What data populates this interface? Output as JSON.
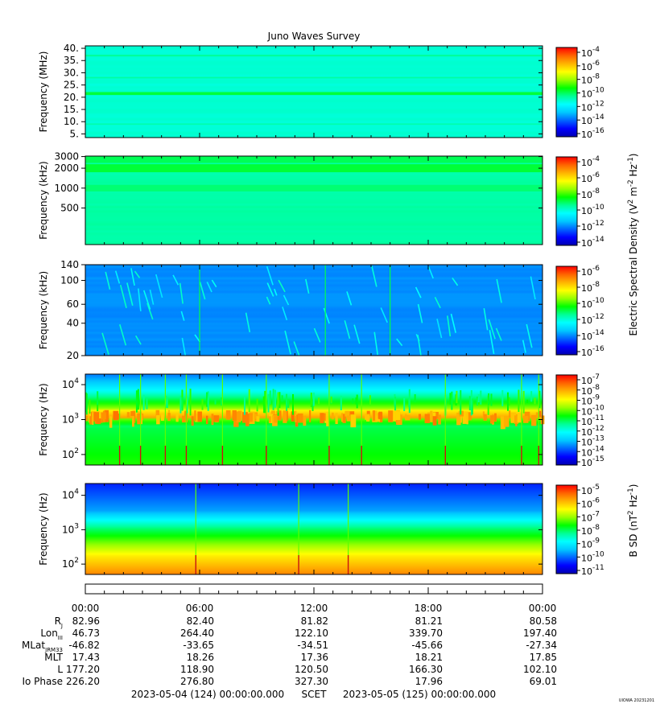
{
  "title": "Juno Waves Survey",
  "colors": {
    "colormap": [
      "#0000b0",
      "#0000ff",
      "#0064ff",
      "#00c8ff",
      "#00ffff",
      "#00ff96",
      "#00ff00",
      "#96ff00",
      "#ffff00",
      "#ffb400",
      "#ff6400",
      "#ff0000"
    ]
  },
  "chart_data": [
    {
      "type": "heatmap",
      "name": "panel-hfwbr",
      "ylabel": "Frequency (MHz)",
      "yscale": "linear",
      "ylim": [
        3.5,
        41
      ],
      "yticks": [
        "40.",
        "35.",
        "30.",
        "25.",
        "20.",
        "15.",
        "10.",
        "5."
      ],
      "ytick_values": [
        40,
        35,
        30,
        25,
        20,
        15,
        10,
        5
      ],
      "base_level": 0.4,
      "bands": [
        {
          "y": 21.5,
          "width": 1.2,
          "level": 0.52
        },
        {
          "y": 28.0,
          "width": 0.6,
          "level": 0.45
        },
        {
          "y": 37.0,
          "width": 0.6,
          "level": 0.46
        },
        {
          "y": 9.0,
          "width": 0.6,
          "level": 0.44
        }
      ],
      "colorbar": {
        "labels": [
          "10",
          "10",
          "10",
          "10",
          "10",
          "10",
          "10"
        ],
        "exponents": [
          "-4",
          "-6",
          "-8",
          "-10",
          "-12",
          "-14",
          "-16"
        ]
      }
    },
    {
      "type": "heatmap",
      "name": "panel-hfr",
      "ylabel": "Frequency (kHz)",
      "yscale": "log",
      "ylim": [
        140,
        3050
      ],
      "yticks": [
        "3000",
        "2000",
        "1000",
        "500"
      ],
      "ytick_values": [
        3000,
        2000,
        1000,
        500
      ],
      "base_level": 0.44,
      "bands": [
        {
          "y": 2000,
          "width": 0.06,
          "level": 0.52
        },
        {
          "y": 2700,
          "width": 0.05,
          "level": 0.5
        },
        {
          "y": 1000,
          "width": 0.05,
          "level": 0.48
        }
      ],
      "colorbar": {
        "labels": [
          "10",
          "10",
          "10",
          "10",
          "10",
          "10"
        ],
        "exponents": [
          "-4",
          "-6",
          "-8",
          "-10",
          "-12",
          "-14"
        ]
      }
    },
    {
      "type": "heatmap",
      "name": "panel-lfr-high",
      "ylabel": "Frequency (kHz)",
      "yscale": "log",
      "ylim": [
        20,
        140
      ],
      "yticks": [
        "140",
        "100",
        "60",
        "40",
        "20"
      ],
      "ytick_values": [
        140,
        100,
        60,
        40,
        20
      ],
      "base_level": 0.22,
      "spikes_hours": [
        6.0,
        12.6,
        16.0
      ],
      "colorbar": {
        "labels": [
          "10",
          "10",
          "10",
          "10",
          "10",
          "10"
        ],
        "exponents": [
          "-6",
          "-8",
          "-10",
          "-12",
          "-14",
          "-16"
        ]
      }
    },
    {
      "type": "heatmap",
      "name": "panel-lfr-low",
      "ylabel": "Frequency (Hz)",
      "yscale": "log",
      "ylim": [
        50,
        20000
      ],
      "yticks": [
        "10",
        "10",
        "10"
      ],
      "ytick_exponents": [
        "4",
        "3",
        "2"
      ],
      "ytick_values": [
        10000,
        1000,
        100
      ],
      "spikes_hours": [
        1.8,
        2.9,
        4.2,
        5.3,
        7.2,
        9.5,
        12.8,
        14.5,
        18.9,
        22.9,
        23.8
      ],
      "colorbar": {
        "labels": [
          "10",
          "10",
          "10",
          "10",
          "10",
          "10",
          "10",
          "10",
          "10"
        ],
        "exponents": [
          "-7",
          "-8",
          "-9",
          "-10",
          "-11",
          "-12",
          "-13",
          "-14",
          "-15"
        ]
      }
    },
    {
      "type": "heatmap",
      "name": "panel-magnetic",
      "ylabel": "Frequency (Hz)",
      "yscale": "log",
      "ylim": [
        50,
        22000
      ],
      "yticks": [
        "10",
        "10",
        "10"
      ],
      "ytick_exponents": [
        "4",
        "3",
        "2"
      ],
      "ytick_values": [
        10000,
        1000,
        100
      ],
      "spikes_hours": [
        5.8,
        11.2,
        13.8
      ],
      "colorbar": {
        "labels": [
          "10",
          "10",
          "10",
          "10",
          "10",
          "10",
          "10"
        ],
        "exponents": [
          "-5",
          "-6",
          "-7",
          "-8",
          "-9",
          "-10",
          "-11"
        ]
      }
    }
  ],
  "colorbar_titles": {
    "electric_main": "Electric Spectral Density (V",
    "electric_sup1": "2",
    "electric_mid": " m",
    "electric_sup2": "-2",
    "electric_hz": " Hz",
    "electric_sup3": "-1",
    "electric_end": ")",
    "magnetic_main": "B SD (nT",
    "magnetic_sup1": "2",
    "magnetic_hz": " Hz",
    "magnetic_sup2": "-1",
    "magnetic_end": ")"
  },
  "time_axis": {
    "ticks": [
      "00:00",
      "06:00",
      "12:00",
      "18:00",
      "00:00"
    ],
    "tick_hours": [
      0,
      6,
      12,
      18,
      24
    ]
  },
  "ephemeris": [
    {
      "label": "R",
      "sub": "J",
      "values": [
        "82.96",
        "82.40",
        "81.82",
        "81.21",
        "80.58"
      ]
    },
    {
      "label": "Lon",
      "sub": "III",
      "values": [
        "46.73",
        "264.40",
        "122.10",
        "339.70",
        "197.40"
      ]
    },
    {
      "label": "MLat",
      "sub": "JRM33",
      "values": [
        "-46.82",
        "-33.65",
        "-34.51",
        "-45.66",
        "-27.34"
      ]
    },
    {
      "label": "MLT",
      "sub": "",
      "values": [
        "17.43",
        "18.26",
        "17.36",
        "18.21",
        "17.85"
      ]
    },
    {
      "label": "L",
      "sub": "",
      "values": [
        "177.20",
        "118.90",
        "120.50",
        "166.30",
        "102.10"
      ]
    },
    {
      "label": "Io Phase",
      "sub": "",
      "values": [
        "226.20",
        "276.80",
        "327.30",
        "17.96",
        "69.01"
      ]
    }
  ],
  "footer": {
    "start": "2023-05-04 (124) 00:00:00.000",
    "scet": "SCET",
    "end": "2023-05-05 (125) 00:00:00.000",
    "credit": "UIOWA 20231201"
  }
}
